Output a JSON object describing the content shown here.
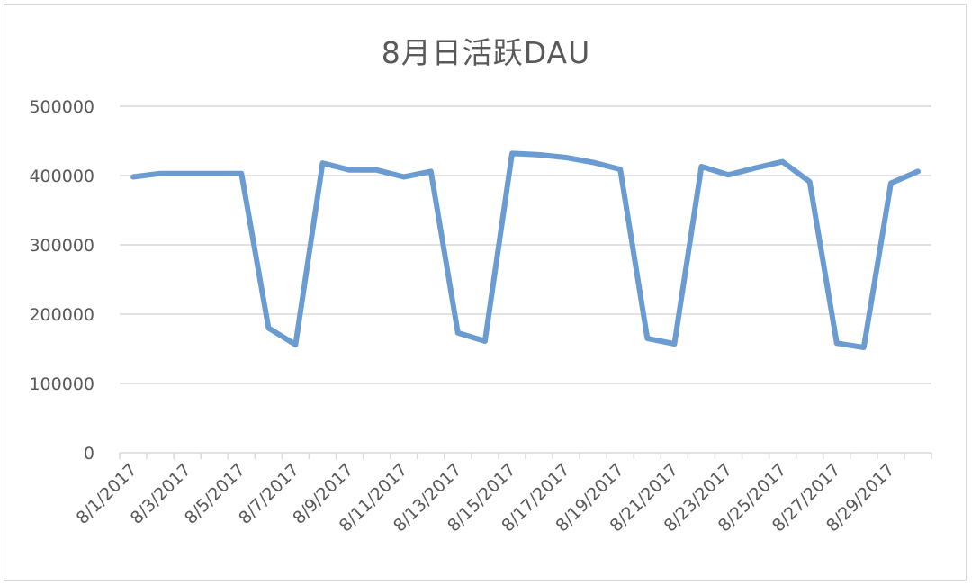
{
  "chart_data": {
    "type": "line",
    "title": "8月日活跃DAU",
    "xlabel": "",
    "ylabel": "",
    "ylim": [
      0,
      500000
    ],
    "yticks": [
      "0",
      "100000",
      "200000",
      "300000",
      "400000",
      "500000"
    ],
    "grid": true,
    "legend": "none",
    "x": [
      "8/1/2017",
      "8/2/2017",
      "8/3/2017",
      "8/4/2017",
      "8/5/2017",
      "8/6/2017",
      "8/7/2017",
      "8/8/2017",
      "8/9/2017",
      "8/10/2017",
      "8/11/2017",
      "8/12/2017",
      "8/13/2017",
      "8/14/2017",
      "8/15/2017",
      "8/16/2017",
      "8/17/2017",
      "8/18/2017",
      "8/19/2017",
      "8/20/2017",
      "8/21/2017",
      "8/22/2017",
      "8/23/2017",
      "8/24/2017",
      "8/25/2017",
      "8/26/2017",
      "8/27/2017",
      "8/28/2017",
      "8/29/2017",
      "8/30/2017"
    ],
    "xtick_labels": [
      "8/1/2017",
      "8/3/2017",
      "8/5/2017",
      "8/7/2017",
      "8/9/2017",
      "8/11/2017",
      "8/13/2017",
      "8/15/2017",
      "8/17/2017",
      "8/19/2017",
      "8/21/2017",
      "8/23/2017",
      "8/25/2017",
      "8/27/2017",
      "8/29/2017"
    ],
    "series": [
      {
        "values": [
          398000,
          403000,
          403000,
          403000,
          403000,
          180000,
          156000,
          418000,
          408000,
          408000,
          398000,
          406000,
          173000,
          161000,
          432000,
          430000,
          426000,
          419000,
          409000,
          165000,
          157000,
          413000,
          401000,
          411000,
          420000,
          391000,
          158000,
          152000,
          389000,
          406000
        ]
      }
    ],
    "colors": {
      "line": "#6a9bd1",
      "grid": "#d9d9d9",
      "axis": "#d9d9d9",
      "text": "#595959"
    }
  }
}
